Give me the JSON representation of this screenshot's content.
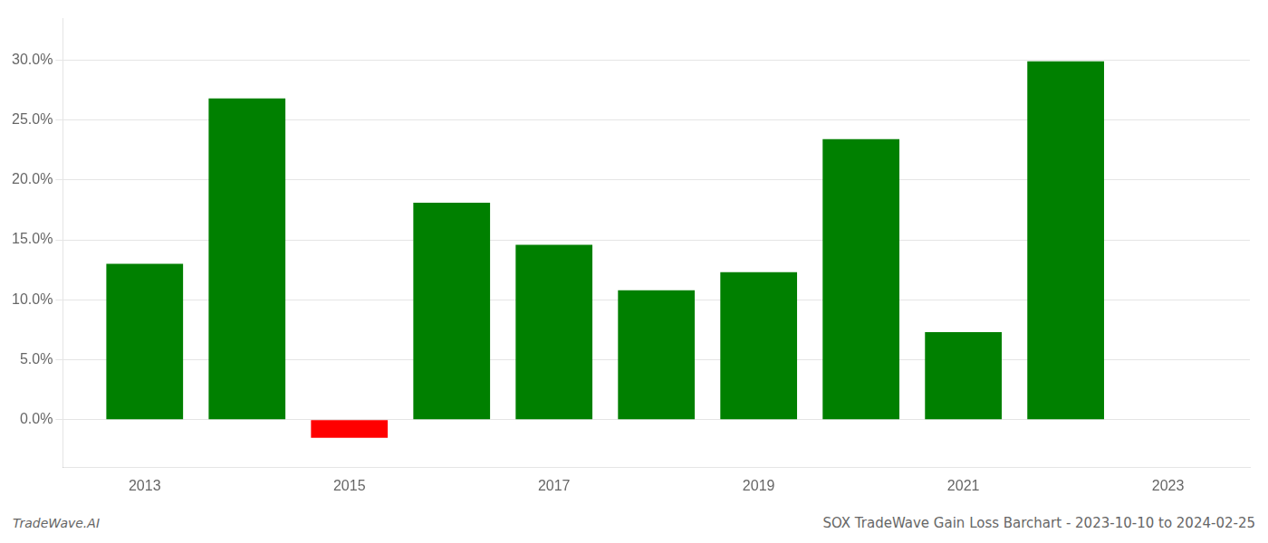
{
  "chart_data": {
    "type": "bar",
    "title": "SOX TradeWave Gain Loss Barchart - 2023-10-10 to 2024-02-25",
    "annotations": [
      "TradeWave.AI"
    ],
    "x": [
      2013,
      2014,
      2015,
      2016,
      2017,
      2018,
      2019,
      2020,
      2021,
      2022
    ],
    "values": [
      0.13,
      0.268,
      -0.015,
      0.181,
      0.146,
      0.108,
      0.123,
      0.234,
      0.073,
      0.299
    ],
    "colors": [
      "#008000",
      "#008000",
      "#ff0000",
      "#008000",
      "#008000",
      "#008000",
      "#008000",
      "#008000",
      "#008000",
      "#008000"
    ],
    "xlim": [
      2012.2,
      2023.8
    ],
    "xticks": [
      2013,
      2015,
      2017,
      2019,
      2021,
      2023
    ],
    "ylim": [
      -0.04,
      0.335
    ],
    "yticks": [
      {
        "value": 0.0,
        "label": "0.0%"
      },
      {
        "value": 0.05,
        "label": "5.0%"
      },
      {
        "value": 0.1,
        "label": "10.0%"
      },
      {
        "value": 0.15,
        "label": "15.0%"
      },
      {
        "value": 0.2,
        "label": "20.0%"
      },
      {
        "value": 0.25,
        "label": "25.0%"
      },
      {
        "value": 0.3,
        "label": "30.0%"
      }
    ],
    "grid": true
  }
}
